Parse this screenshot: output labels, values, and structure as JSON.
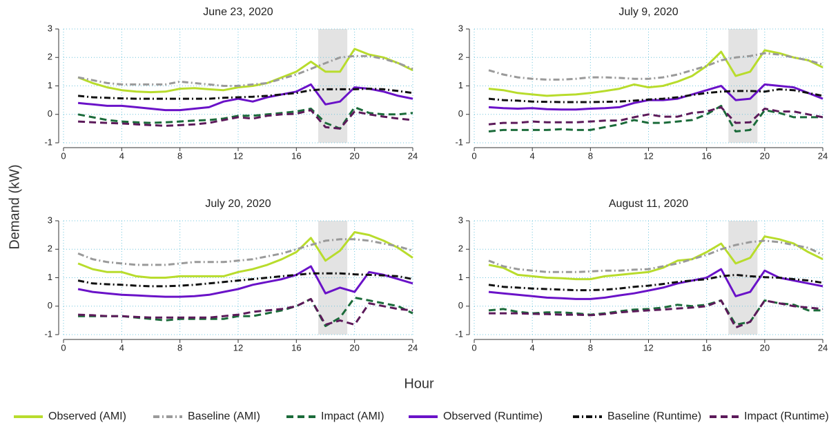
{
  "ylabel": "Demand (kW)",
  "xlabel": "Hour",
  "legend": [
    {
      "name": "Observed (AMI)",
      "color": "#b8dc2c",
      "dash": "solid"
    },
    {
      "name": "Baseline (AMI)",
      "color": "#9a9a9a",
      "dash": "dashdot"
    },
    {
      "name": "Impact (AMI)",
      "color": "#1b6b3a",
      "dash": "dash"
    },
    {
      "name": "Observed (Runtime)",
      "color": "#6a12c8",
      "dash": "solid"
    },
    {
      "name": "Baseline (Runtime)",
      "color": "#111111",
      "dash": "dashdot"
    },
    {
      "name": "Impact (Runtime)",
      "color": "#5c1a5a",
      "dash": "dash"
    }
  ],
  "chart_data": [
    {
      "type": "line",
      "title": "June 23, 2020",
      "grid": true,
      "shade": [
        17.5,
        19.5
      ],
      "x": [
        1,
        2,
        3,
        4,
        5,
        6,
        7,
        8,
        9,
        10,
        11,
        12,
        13,
        14,
        15,
        16,
        17,
        18,
        19,
        20,
        21,
        22,
        23,
        24
      ],
      "xlim": [
        0,
        24
      ],
      "xticks": [
        0,
        4,
        8,
        12,
        16,
        20,
        24
      ],
      "ylim": [
        -1,
        3
      ],
      "yticks": [
        -1,
        0,
        1,
        2,
        3
      ],
      "series": [
        {
          "values": [
            1.3,
            1.1,
            0.95,
            0.85,
            0.8,
            0.78,
            0.8,
            0.9,
            0.92,
            0.88,
            0.85,
            0.95,
            1.0,
            1.1,
            1.3,
            1.5,
            1.85,
            1.5,
            1.5,
            2.3,
            2.1,
            2.0,
            1.8,
            1.55
          ]
        },
        {
          "values": [
            1.3,
            1.2,
            1.1,
            1.05,
            1.05,
            1.05,
            1.05,
            1.15,
            1.1,
            1.05,
            1.0,
            1.0,
            1.05,
            1.1,
            1.25,
            1.4,
            1.6,
            1.8,
            2.0,
            2.05,
            2.05,
            1.95,
            1.8,
            1.6
          ]
        },
        {
          "values": [
            0.0,
            -0.1,
            -0.2,
            -0.25,
            -0.28,
            -0.3,
            -0.28,
            -0.25,
            -0.22,
            -0.2,
            -0.15,
            -0.05,
            -0.05,
            0.0,
            0.05,
            0.1,
            0.2,
            -0.3,
            -0.5,
            0.25,
            0.05,
            0.0,
            0.0,
            0.05
          ]
        },
        {
          "values": [
            0.4,
            0.35,
            0.3,
            0.3,
            0.25,
            0.2,
            0.15,
            0.15,
            0.2,
            0.25,
            0.45,
            0.55,
            0.45,
            0.6,
            0.7,
            0.8,
            1.05,
            0.35,
            0.45,
            0.95,
            0.9,
            0.8,
            0.65,
            0.55
          ]
        },
        {
          "values": [
            0.65,
            0.6,
            0.58,
            0.56,
            0.55,
            0.55,
            0.55,
            0.55,
            0.55,
            0.55,
            0.58,
            0.6,
            0.62,
            0.65,
            0.7,
            0.75,
            0.85,
            0.88,
            0.88,
            0.88,
            0.9,
            0.88,
            0.82,
            0.75
          ]
        },
        {
          "values": [
            -0.25,
            -0.28,
            -0.3,
            -0.32,
            -0.35,
            -0.38,
            -0.4,
            -0.38,
            -0.35,
            -0.3,
            -0.2,
            -0.1,
            -0.15,
            -0.05,
            0.0,
            0.02,
            0.15,
            -0.45,
            -0.5,
            0.1,
            0.0,
            -0.08,
            -0.15,
            -0.2
          ]
        }
      ]
    },
    {
      "type": "line",
      "title": "July 9, 2020",
      "grid": true,
      "shade": [
        17.5,
        19.5
      ],
      "x": [
        1,
        2,
        3,
        4,
        5,
        6,
        7,
        8,
        9,
        10,
        11,
        12,
        13,
        14,
        15,
        16,
        17,
        18,
        19,
        20,
        21,
        22,
        23,
        24
      ],
      "xlim": [
        0,
        24
      ],
      "xticks": [
        0,
        4,
        8,
        12,
        16,
        20,
        24
      ],
      "ylim": [
        -1,
        3
      ],
      "yticks": [
        -1,
        0,
        1,
        2,
        3
      ],
      "series": [
        {
          "values": [
            0.9,
            0.85,
            0.75,
            0.7,
            0.65,
            0.68,
            0.7,
            0.75,
            0.82,
            0.9,
            1.05,
            0.95,
            1.0,
            1.15,
            1.35,
            1.7,
            2.2,
            1.35,
            1.5,
            2.25,
            2.15,
            2.0,
            1.9,
            1.65
          ]
        },
        {
          "values": [
            1.55,
            1.4,
            1.3,
            1.25,
            1.22,
            1.22,
            1.25,
            1.3,
            1.3,
            1.28,
            1.25,
            1.25,
            1.3,
            1.4,
            1.55,
            1.7,
            1.9,
            2.0,
            2.05,
            2.15,
            2.1,
            2.0,
            1.9,
            1.75
          ]
        },
        {
          "values": [
            -0.6,
            -0.55,
            -0.55,
            -0.55,
            -0.55,
            -0.52,
            -0.55,
            -0.55,
            -0.45,
            -0.35,
            -0.2,
            -0.3,
            -0.3,
            -0.25,
            -0.2,
            0.0,
            0.3,
            -0.6,
            -0.55,
            0.15,
            0.05,
            -0.1,
            -0.1,
            -0.1
          ]
        },
        {
          "values": [
            0.25,
            0.22,
            0.2,
            0.22,
            0.18,
            0.17,
            0.17,
            0.2,
            0.22,
            0.25,
            0.4,
            0.5,
            0.5,
            0.55,
            0.7,
            0.85,
            1.0,
            0.5,
            0.55,
            1.05,
            1.0,
            0.95,
            0.75,
            0.55
          ]
        },
        {
          "values": [
            0.55,
            0.5,
            0.48,
            0.45,
            0.44,
            0.43,
            0.43,
            0.43,
            0.44,
            0.45,
            0.48,
            0.52,
            0.55,
            0.6,
            0.68,
            0.75,
            0.8,
            0.82,
            0.82,
            0.8,
            0.88,
            0.85,
            0.75,
            0.65
          ]
        },
        {
          "values": [
            -0.35,
            -0.3,
            -0.3,
            -0.25,
            -0.28,
            -0.28,
            -0.28,
            -0.25,
            -0.22,
            -0.22,
            -0.1,
            0.0,
            -0.08,
            -0.08,
            0.05,
            0.1,
            0.25,
            -0.3,
            -0.28,
            0.2,
            0.1,
            0.1,
            0.0,
            -0.1
          ]
        }
      ]
    },
    {
      "type": "line",
      "title": "July 20, 2020",
      "grid": true,
      "shade": [
        17.5,
        19.5
      ],
      "x": [
        1,
        2,
        3,
        4,
        5,
        6,
        7,
        8,
        9,
        10,
        11,
        12,
        13,
        14,
        15,
        16,
        17,
        18,
        19,
        20,
        21,
        22,
        23,
        24
      ],
      "xlim": [
        0,
        24
      ],
      "xticks": [
        0,
        4,
        8,
        12,
        16,
        20,
        24
      ],
      "ylim": [
        -1,
        3
      ],
      "yticks": [
        -1,
        0,
        1,
        2,
        3
      ],
      "series": [
        {
          "values": [
            1.5,
            1.3,
            1.2,
            1.2,
            1.05,
            1.0,
            1.0,
            1.05,
            1.05,
            1.05,
            1.05,
            1.2,
            1.3,
            1.45,
            1.65,
            1.9,
            2.4,
            1.6,
            1.95,
            2.6,
            2.5,
            2.3,
            2.05,
            1.7
          ]
        },
        {
          "values": [
            1.85,
            1.65,
            1.55,
            1.5,
            1.45,
            1.45,
            1.45,
            1.5,
            1.55,
            1.55,
            1.55,
            1.6,
            1.65,
            1.75,
            1.85,
            2.0,
            2.15,
            2.3,
            2.35,
            2.35,
            2.3,
            2.2,
            2.1,
            1.95
          ]
        },
        {
          "values": [
            -0.35,
            -0.35,
            -0.35,
            -0.35,
            -0.4,
            -0.45,
            -0.5,
            -0.45,
            -0.45,
            -0.45,
            -0.45,
            -0.35,
            -0.35,
            -0.25,
            -0.15,
            0.0,
            0.25,
            -0.7,
            -0.4,
            0.3,
            0.2,
            0.1,
            0.0,
            -0.25
          ]
        },
        {
          "values": [
            0.6,
            0.5,
            0.45,
            0.4,
            0.38,
            0.35,
            0.33,
            0.33,
            0.35,
            0.4,
            0.5,
            0.6,
            0.75,
            0.85,
            0.95,
            1.1,
            1.4,
            0.45,
            0.65,
            0.5,
            1.2,
            1.1,
            0.95,
            0.8
          ]
        },
        {
          "values": [
            0.9,
            0.8,
            0.77,
            0.75,
            0.72,
            0.7,
            0.7,
            0.72,
            0.75,
            0.8,
            0.85,
            0.9,
            0.95,
            1.0,
            1.05,
            1.1,
            1.15,
            1.15,
            1.15,
            1.12,
            1.1,
            1.08,
            1.05,
            0.95
          ]
        },
        {
          "values": [
            -0.3,
            -0.32,
            -0.35,
            -0.35,
            -0.38,
            -0.4,
            -0.4,
            -0.4,
            -0.4,
            -0.4,
            -0.35,
            -0.3,
            -0.2,
            -0.15,
            -0.1,
            0.0,
            0.25,
            -0.65,
            -0.5,
            -0.65,
            0.1,
            0.0,
            -0.1,
            -0.15
          ]
        }
      ]
    },
    {
      "type": "line",
      "title": "August 11, 2020",
      "grid": true,
      "shade": [
        17.5,
        19.5
      ],
      "x": [
        1,
        2,
        3,
        4,
        5,
        6,
        7,
        8,
        9,
        10,
        11,
        12,
        13,
        14,
        15,
        16,
        17,
        18,
        19,
        20,
        21,
        22,
        23,
        24
      ],
      "xlim": [
        0,
        24
      ],
      "xticks": [
        0,
        4,
        8,
        12,
        16,
        20,
        24
      ],
      "ylim": [
        -1,
        3
      ],
      "yticks": [
        -1,
        0,
        1,
        2,
        3
      ],
      "series": [
        {
          "values": [
            1.45,
            1.35,
            1.1,
            1.05,
            1.0,
            0.98,
            0.95,
            0.95,
            1.05,
            1.1,
            1.15,
            1.2,
            1.35,
            1.6,
            1.65,
            1.9,
            2.2,
            1.5,
            1.7,
            2.45,
            2.35,
            2.2,
            1.9,
            1.65
          ]
        },
        {
          "values": [
            1.6,
            1.4,
            1.3,
            1.25,
            1.2,
            1.2,
            1.2,
            1.22,
            1.25,
            1.25,
            1.28,
            1.3,
            1.4,
            1.5,
            1.65,
            1.8,
            2.0,
            2.15,
            2.25,
            2.3,
            2.25,
            2.15,
            2.05,
            1.8
          ]
        },
        {
          "values": [
            -0.15,
            -0.1,
            -0.2,
            -0.25,
            -0.22,
            -0.22,
            -0.25,
            -0.3,
            -0.25,
            -0.18,
            -0.12,
            -0.1,
            -0.05,
            0.05,
            0.0,
            0.05,
            0.2,
            -0.65,
            -0.55,
            0.2,
            0.1,
            0.05,
            -0.15,
            -0.15
          ]
        },
        {
          "values": [
            0.5,
            0.45,
            0.4,
            0.35,
            0.3,
            0.28,
            0.25,
            0.25,
            0.3,
            0.38,
            0.45,
            0.55,
            0.65,
            0.8,
            0.9,
            1.0,
            1.3,
            0.35,
            0.5,
            1.25,
            1.0,
            0.9,
            0.8,
            0.7
          ]
        },
        {
          "values": [
            0.75,
            0.68,
            0.65,
            0.62,
            0.6,
            0.58,
            0.56,
            0.56,
            0.58,
            0.62,
            0.68,
            0.72,
            0.78,
            0.85,
            0.9,
            0.95,
            1.05,
            1.1,
            1.05,
            1.02,
            1.0,
            0.95,
            0.9,
            0.82
          ]
        },
        {
          "values": [
            -0.25,
            -0.25,
            -0.25,
            -0.27,
            -0.28,
            -0.3,
            -0.3,
            -0.32,
            -0.28,
            -0.22,
            -0.18,
            -0.15,
            -0.12,
            -0.08,
            -0.05,
            0.0,
            0.2,
            -0.75,
            -0.55,
            0.2,
            0.1,
            0.0,
            -0.05,
            -0.1
          ]
        }
      ]
    }
  ]
}
